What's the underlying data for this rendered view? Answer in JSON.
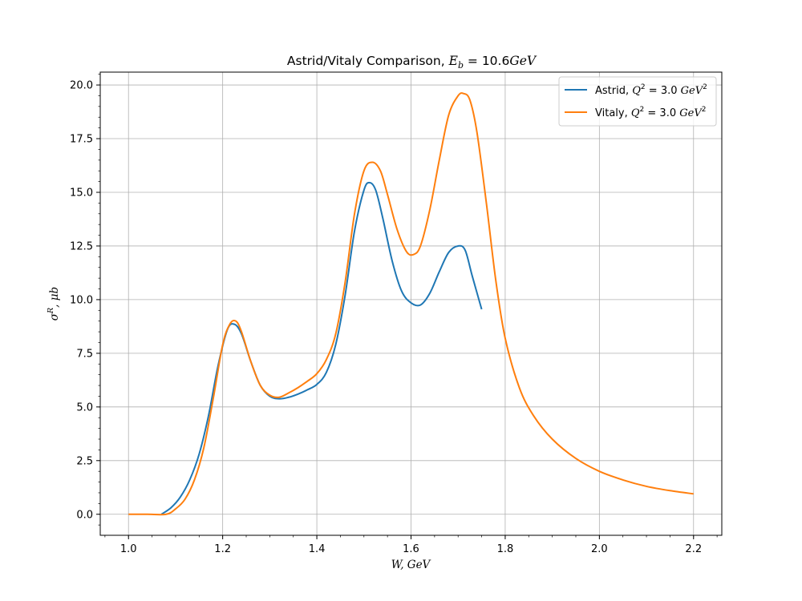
{
  "chart_data": {
    "type": "line",
    "title": {
      "prefix": "Astrid/Vitaly Comparison, ",
      "math_var": "E",
      "math_sub": "b",
      "math_rest": " = 10.6",
      "math_unit": "GeV"
    },
    "xlabel": "W, GeV",
    "ylabel": {
      "base": "σ",
      "sup": "R",
      "rest": ", μb"
    },
    "xlim": [
      0.94,
      2.26
    ],
    "ylim": [
      -0.98,
      20.6
    ],
    "xticks": [
      1.0,
      1.2,
      1.4,
      1.6,
      1.8,
      2.0,
      2.2
    ],
    "xtick_labels": [
      "1.0",
      "1.2",
      "1.4",
      "1.6",
      "1.8",
      "2.0",
      "2.2"
    ],
    "yticks": [
      0.0,
      2.5,
      5.0,
      7.5,
      10.0,
      12.5,
      15.0,
      17.5,
      20.0
    ],
    "ytick_labels": [
      "0.0",
      "2.5",
      "5.0",
      "7.5",
      "10.0",
      "12.5",
      "15.0",
      "17.5",
      "20.0"
    ],
    "grid": true,
    "legend_position": "top-right",
    "series": [
      {
        "name": "Astrid, Q² = 3.0 GeV²",
        "legend": {
          "prefix": "Astrid, ",
          "q": "Q",
          "rest": " = 3.0 ",
          "unit": "GeV"
        },
        "color": "#1f77b4",
        "x": [
          1.07,
          1.09,
          1.11,
          1.13,
          1.15,
          1.17,
          1.19,
          1.21,
          1.225,
          1.24,
          1.26,
          1.28,
          1.3,
          1.32,
          1.34,
          1.36,
          1.38,
          1.4,
          1.42,
          1.44,
          1.46,
          1.48,
          1.5,
          1.512,
          1.525,
          1.54,
          1.56,
          1.58,
          1.6,
          1.62,
          1.64,
          1.66,
          1.68,
          1.7,
          1.715,
          1.73,
          1.75
        ],
        "y": [
          0.0,
          0.3,
          0.8,
          1.6,
          2.8,
          4.6,
          6.9,
          8.6,
          8.85,
          8.4,
          7.1,
          6.0,
          5.5,
          5.38,
          5.45,
          5.6,
          5.8,
          6.05,
          6.6,
          7.9,
          10.2,
          13.2,
          15.1,
          15.45,
          15.1,
          13.8,
          11.8,
          10.4,
          9.85,
          9.75,
          10.3,
          11.3,
          12.2,
          12.5,
          12.3,
          11.1,
          9.55
        ]
      },
      {
        "name": "Vitaly, Q² = 3.0 GeV²",
        "legend": {
          "prefix": "Vitaly, ",
          "q": "Q",
          "rest": " = 3.0 ",
          "unit": "GeV"
        },
        "color": "#ff7f0e",
        "x": [
          1.0,
          1.04,
          1.08,
          1.1,
          1.12,
          1.14,
          1.16,
          1.18,
          1.2,
          1.215,
          1.228,
          1.24,
          1.26,
          1.28,
          1.3,
          1.32,
          1.34,
          1.36,
          1.38,
          1.4,
          1.42,
          1.44,
          1.46,
          1.48,
          1.5,
          1.518,
          1.535,
          1.55,
          1.57,
          1.59,
          1.605,
          1.62,
          1.64,
          1.66,
          1.68,
          1.7,
          1.712,
          1.725,
          1.74,
          1.76,
          1.78,
          1.8,
          1.83,
          1.86,
          1.9,
          1.95,
          2.0,
          2.05,
          2.1,
          2.15,
          2.2
        ],
        "y": [
          0.0,
          0.0,
          0.0,
          0.25,
          0.7,
          1.6,
          3.1,
          5.4,
          7.9,
          8.85,
          9.0,
          8.5,
          7.1,
          6.0,
          5.55,
          5.45,
          5.65,
          5.9,
          6.2,
          6.55,
          7.2,
          8.4,
          10.8,
          14.0,
          16.0,
          16.4,
          16.0,
          14.9,
          13.3,
          12.25,
          12.1,
          12.5,
          14.2,
          16.5,
          18.6,
          19.5,
          19.6,
          19.3,
          17.8,
          14.5,
          10.9,
          8.2,
          5.9,
          4.6,
          3.5,
          2.6,
          2.0,
          1.6,
          1.3,
          1.1,
          0.95
        ]
      }
    ]
  }
}
